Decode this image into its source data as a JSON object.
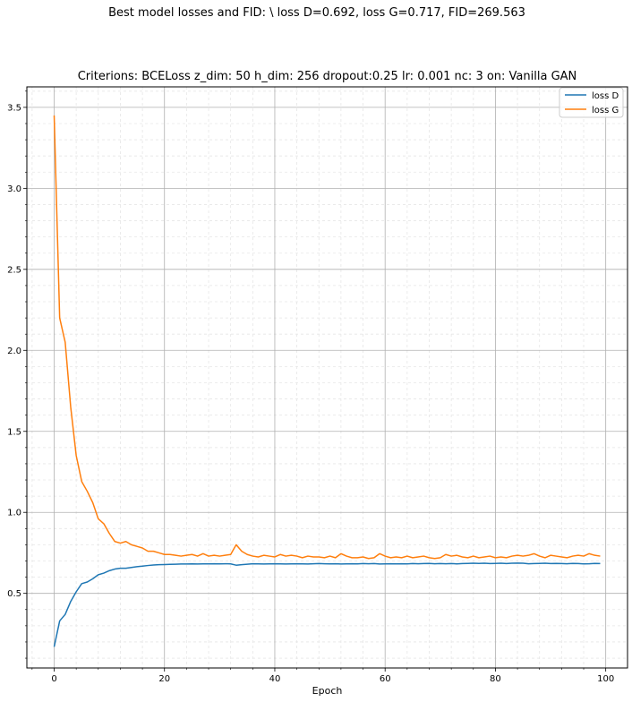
{
  "figure": {
    "suptitle": "Best model losses and FID:  \\ loss D=0.692, loss G=0.717, FID=269.563"
  },
  "chart_data": {
    "type": "line",
    "title": "Criterions: BCELoss  z_dim: 50 h_dim: 256 dropout:0.25 lr: 0.001 nc: 3 on: Vanilla GAN",
    "xlabel": "Epoch",
    "ylabel": "",
    "xlim": [
      -4.95,
      103.95
    ],
    "ylim": [
      0.0395,
      3.6265
    ],
    "x_ticks": [
      0,
      20,
      40,
      60,
      80,
      100
    ],
    "y_ticks": [
      0.5,
      1.0,
      1.5,
      2.0,
      2.5,
      3.0,
      3.5
    ],
    "x_tick_labels": [
      "0",
      "20",
      "40",
      "60",
      "80",
      "100"
    ],
    "y_tick_labels": [
      "0.5",
      "1.0",
      "1.5",
      "2.0",
      "2.5",
      "3.0",
      "3.5"
    ],
    "grid": {
      "major": true,
      "minor": true
    },
    "legend_position": "top-right",
    "series": [
      {
        "name": "loss D",
        "color": "#1f77b4",
        "values": [
          0.17,
          0.33,
          0.37,
          0.45,
          0.51,
          0.56,
          0.57,
          0.59,
          0.615,
          0.625,
          0.64,
          0.65,
          0.655,
          0.655,
          0.66,
          0.665,
          0.668,
          0.672,
          0.675,
          0.677,
          0.678,
          0.679,
          0.68,
          0.681,
          0.681,
          0.682,
          0.681,
          0.682,
          0.682,
          0.683,
          0.682,
          0.683,
          0.682,
          0.674,
          0.677,
          0.68,
          0.683,
          0.682,
          0.681,
          0.682,
          0.683,
          0.682,
          0.681,
          0.682,
          0.683,
          0.682,
          0.681,
          0.683,
          0.684,
          0.683,
          0.682,
          0.683,
          0.681,
          0.682,
          0.683,
          0.682,
          0.684,
          0.683,
          0.684,
          0.681,
          0.682,
          0.683,
          0.682,
          0.683,
          0.682,
          0.684,
          0.683,
          0.684,
          0.685,
          0.683,
          0.684,
          0.683,
          0.684,
          0.682,
          0.684,
          0.685,
          0.686,
          0.685,
          0.686,
          0.684,
          0.685,
          0.686,
          0.684,
          0.686,
          0.687,
          0.686,
          0.683,
          0.684,
          0.685,
          0.686,
          0.684,
          0.685,
          0.684,
          0.683,
          0.685,
          0.684,
          0.682,
          0.683,
          0.685,
          0.684
        ]
      },
      {
        "name": "loss G",
        "color": "#ff7f0e",
        "values": [
          3.45,
          2.2,
          2.05,
          1.65,
          1.35,
          1.19,
          1.13,
          1.06,
          0.96,
          0.93,
          0.87,
          0.82,
          0.81,
          0.82,
          0.8,
          0.79,
          0.78,
          0.76,
          0.76,
          0.75,
          0.74,
          0.74,
          0.735,
          0.73,
          0.735,
          0.74,
          0.73,
          0.745,
          0.73,
          0.735,
          0.73,
          0.735,
          0.74,
          0.8,
          0.76,
          0.74,
          0.73,
          0.725,
          0.735,
          0.73,
          0.725,
          0.74,
          0.73,
          0.735,
          0.73,
          0.72,
          0.73,
          0.725,
          0.725,
          0.72,
          0.73,
          0.72,
          0.745,
          0.73,
          0.72,
          0.72,
          0.725,
          0.715,
          0.72,
          0.745,
          0.73,
          0.72,
          0.725,
          0.72,
          0.73,
          0.72,
          0.725,
          0.73,
          0.72,
          0.715,
          0.72,
          0.74,
          0.73,
          0.735,
          0.725,
          0.72,
          0.73,
          0.72,
          0.725,
          0.73,
          0.72,
          0.725,
          0.72,
          0.73,
          0.735,
          0.73,
          0.735,
          0.745,
          0.73,
          0.72,
          0.735,
          0.73,
          0.725,
          0.72,
          0.73,
          0.735,
          0.73,
          0.745,
          0.735,
          0.73
        ]
      }
    ]
  }
}
